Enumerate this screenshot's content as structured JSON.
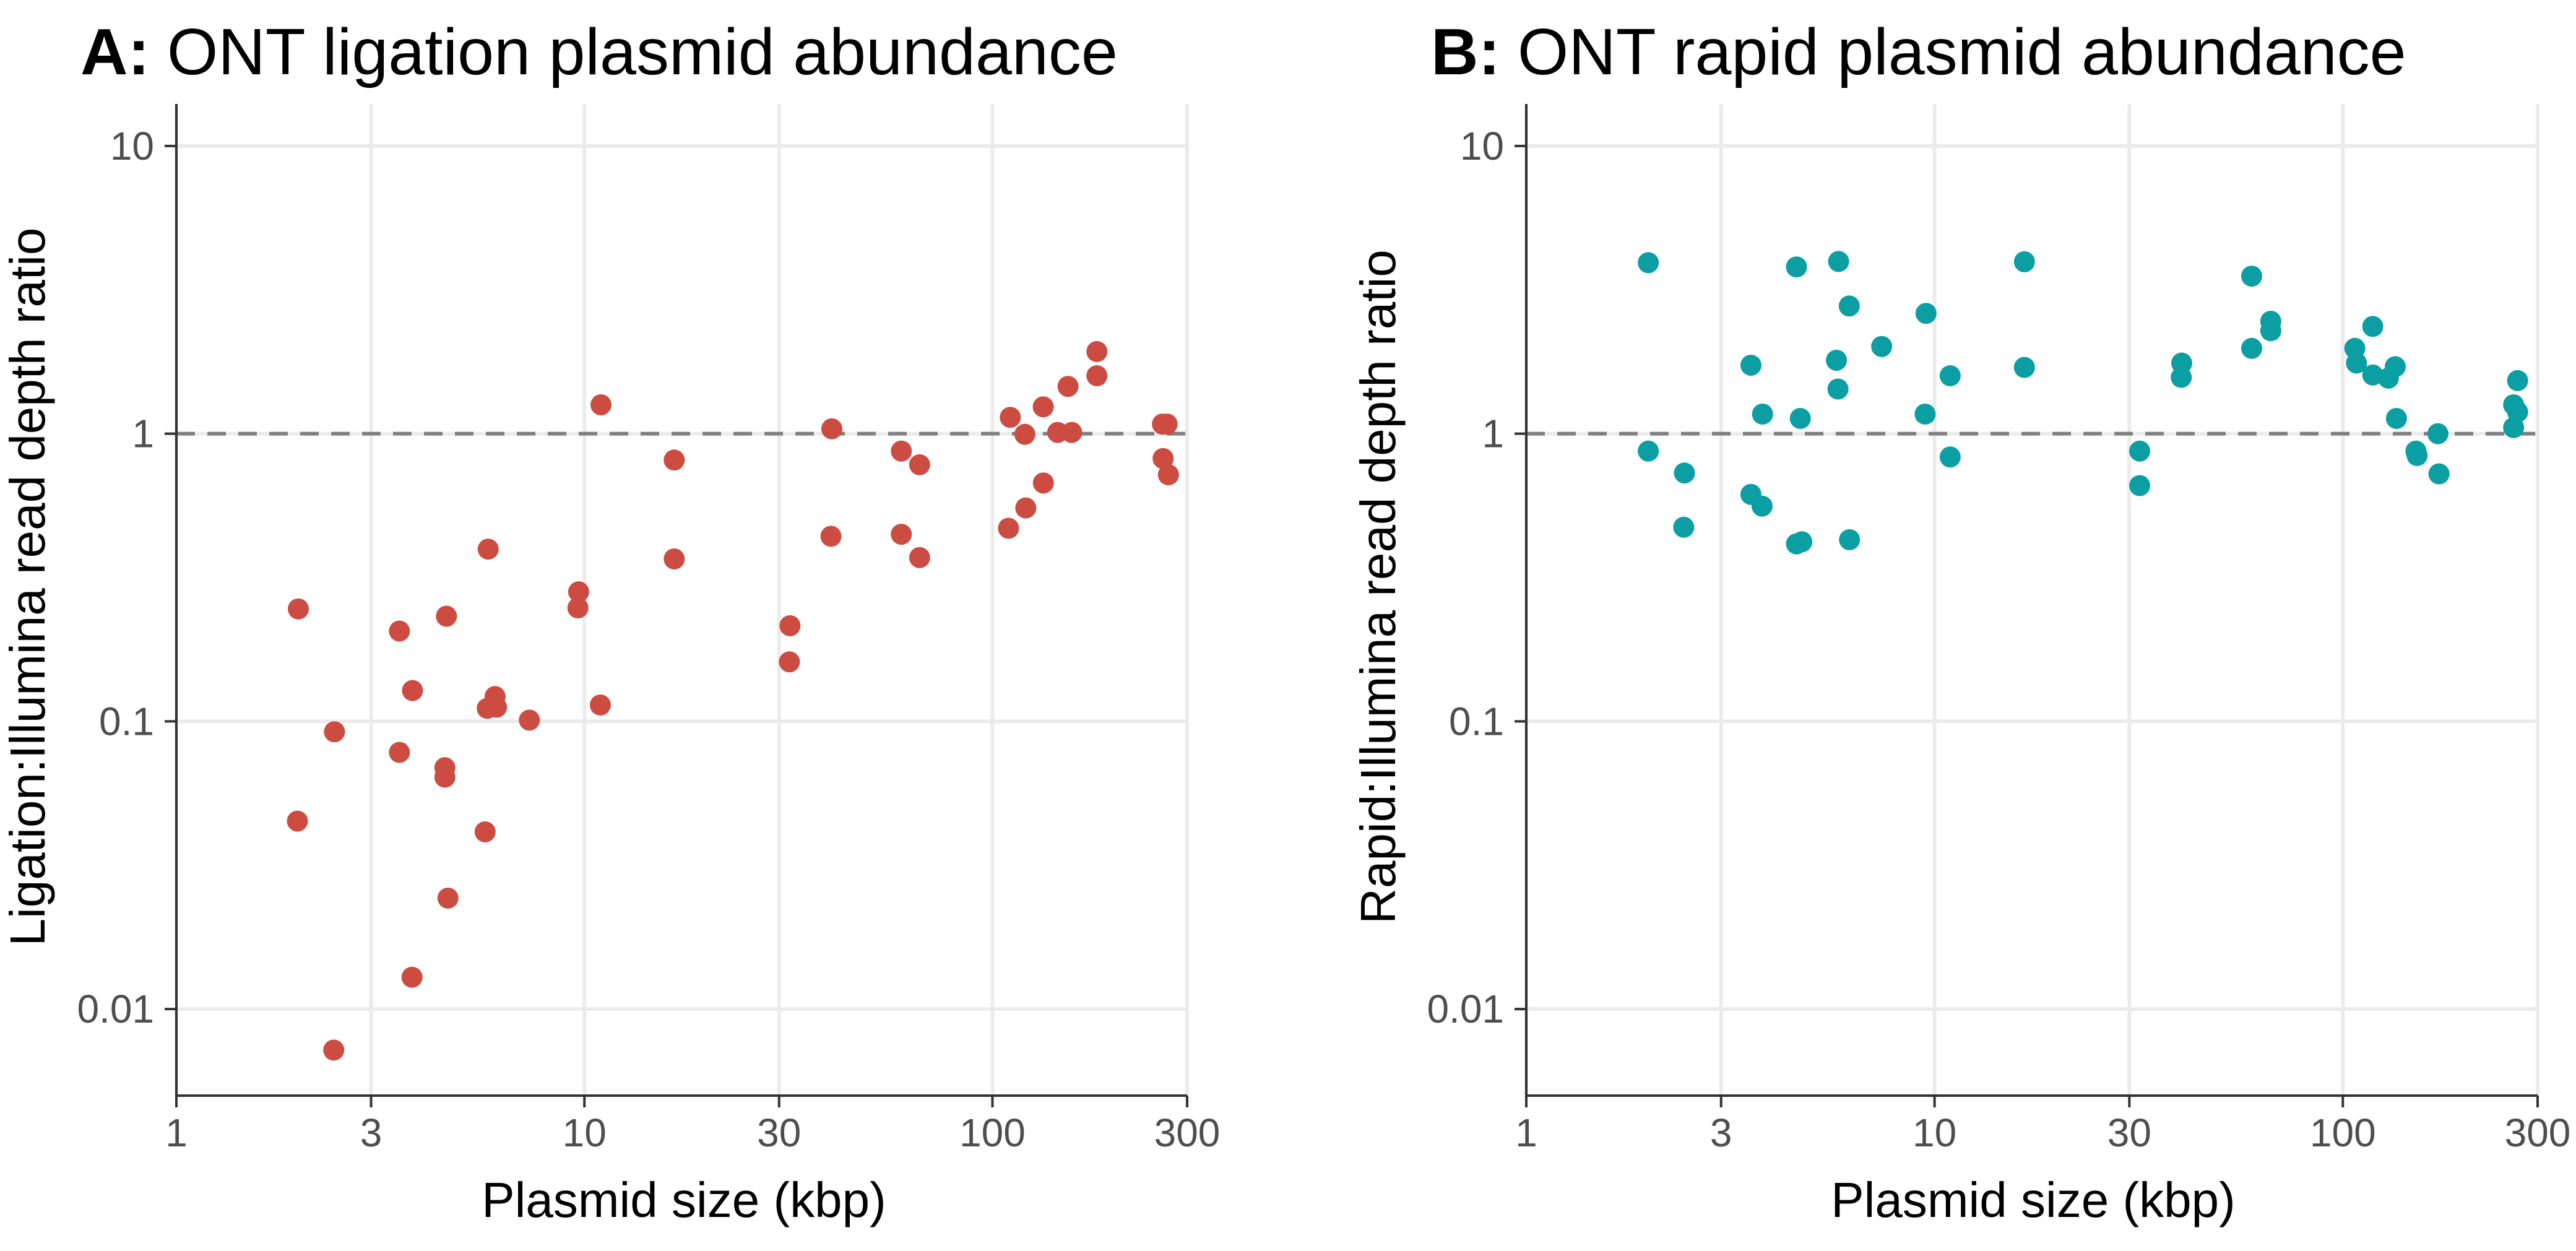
{
  "chart_data": [
    {
      "type": "scatter",
      "panel_letter": "A:",
      "title": "ONT ligation plasmid abundance",
      "xlabel": "Plasmid size (kbp)",
      "ylabel": "Ligation:Illumina read depth ratio",
      "x_scale": "log",
      "y_scale": "log",
      "xlim": [
        1,
        300
      ],
      "ylim": [
        0.005,
        14
      ],
      "x_ticks": [
        1,
        3,
        10,
        30,
        100,
        300
      ],
      "x_tick_labels": [
        "1",
        "3",
        "10",
        "30",
        "100",
        "300"
      ],
      "y_ticks": [
        0.01,
        0.1,
        1,
        10
      ],
      "y_tick_labels": [
        "0.01",
        "0.1",
        "1",
        "10"
      ],
      "reference_line_y": 1,
      "grid": true,
      "point_color": "#CC4C42",
      "points": [
        [
          1.99,
          0.246
        ],
        [
          1.98,
          0.045
        ],
        [
          2.44,
          0.092
        ],
        [
          2.43,
          0.0072
        ],
        [
          3.52,
          0.206
        ],
        [
          3.52,
          0.078
        ],
        [
          3.79,
          0.128
        ],
        [
          3.78,
          0.0129
        ],
        [
          4.59,
          0.232
        ],
        [
          4.55,
          0.069
        ],
        [
          4.55,
          0.064
        ],
        [
          4.63,
          0.0243
        ],
        [
          5.81,
          0.397
        ],
        [
          5.78,
          0.111
        ],
        [
          6.04,
          0.122
        ],
        [
          6.09,
          0.112
        ],
        [
          5.71,
          0.0413
        ],
        [
          7.33,
          0.101
        ],
        [
          9.68,
          0.282
        ],
        [
          9.64,
          0.248
        ],
        [
          10.98,
          1.26
        ],
        [
          10.94,
          0.114
        ],
        [
          16.6,
          0.81
        ],
        [
          16.6,
          0.367
        ],
        [
          31.9,
          0.215
        ],
        [
          31.8,
          0.161
        ],
        [
          40.4,
          1.04
        ],
        [
          40.2,
          0.44
        ],
        [
          59.8,
          0.87
        ],
        [
          59.8,
          0.447
        ],
        [
          66.3,
          0.78
        ],
        [
          66.3,
          0.371
        ],
        [
          110.6,
          1.14
        ],
        [
          109.5,
          0.469
        ],
        [
          120.1,
          0.995
        ],
        [
          120.7,
          0.552
        ],
        [
          133.2,
          1.24
        ],
        [
          133.3,
          0.674
        ],
        [
          144.5,
          1.01
        ],
        [
          156.4,
          1.01
        ],
        [
          153.2,
          1.46
        ],
        [
          180.3,
          1.93
        ],
        [
          180.3,
          1.59
        ],
        [
          261,
          1.08
        ],
        [
          262,
          0.82
        ],
        [
          268,
          1.08
        ],
        [
          270,
          0.72
        ]
      ]
    },
    {
      "type": "scatter",
      "panel_letter": "B:",
      "title": "ONT rapid plasmid abundance",
      "xlabel": "Plasmid size (kbp)",
      "ylabel": "Rapid:Illumina read depth ratio",
      "x_scale": "log",
      "y_scale": "log",
      "xlim": [
        1,
        300
      ],
      "ylim": [
        0.005,
        14
      ],
      "x_ticks": [
        1,
        3,
        10,
        30,
        100,
        300
      ],
      "x_tick_labels": [
        "1",
        "3",
        "10",
        "30",
        "100",
        "300"
      ],
      "y_ticks": [
        0.01,
        0.1,
        1,
        10
      ],
      "y_tick_labels": [
        "0.01",
        "0.1",
        "1",
        "10"
      ],
      "reference_line_y": 1,
      "grid": true,
      "point_color": "#0B9EA2",
      "points": [
        [
          1.99,
          3.93
        ],
        [
          1.99,
          0.87
        ],
        [
          2.44,
          0.73
        ],
        [
          2.43,
          0.473
        ],
        [
          3.55,
          1.73
        ],
        [
          3.55,
          0.615
        ],
        [
          3.79,
          1.17
        ],
        [
          3.78,
          0.56
        ],
        [
          4.59,
          3.8
        ],
        [
          4.59,
          0.414
        ],
        [
          4.73,
          0.421
        ],
        [
          4.69,
          1.13
        ],
        [
          5.82,
          3.97
        ],
        [
          5.75,
          1.8
        ],
        [
          5.8,
          1.43
        ],
        [
          6.18,
          2.78
        ],
        [
          6.19,
          0.428
        ],
        [
          7.42,
          2.01
        ],
        [
          9.53,
          2.62
        ],
        [
          9.48,
          1.17
        ],
        [
          10.92,
          1.59
        ],
        [
          10.92,
          0.83
        ],
        [
          16.6,
          3.96
        ],
        [
          16.6,
          1.7
        ],
        [
          31.8,
          0.87
        ],
        [
          31.8,
          0.66
        ],
        [
          40.3,
          1.76
        ],
        [
          40.2,
          1.57
        ],
        [
          59.8,
          3.53
        ],
        [
          59.8,
          1.98
        ],
        [
          66.6,
          2.46
        ],
        [
          66.6,
          2.28
        ],
        [
          107,
          1.98
        ],
        [
          108,
          1.76
        ],
        [
          118.4,
          2.36
        ],
        [
          118.4,
          1.6
        ],
        [
          129.3,
          1.56
        ],
        [
          134.4,
          1.71
        ],
        [
          135.3,
          1.13
        ],
        [
          151,
          0.87
        ],
        [
          152,
          0.84
        ],
        [
          171,
          1.0
        ],
        [
          172,
          0.725
        ],
        [
          262,
          1.26
        ],
        [
          262,
          1.05
        ],
        [
          268,
          1.53
        ],
        [
          268,
          1.19
        ]
      ]
    }
  ]
}
